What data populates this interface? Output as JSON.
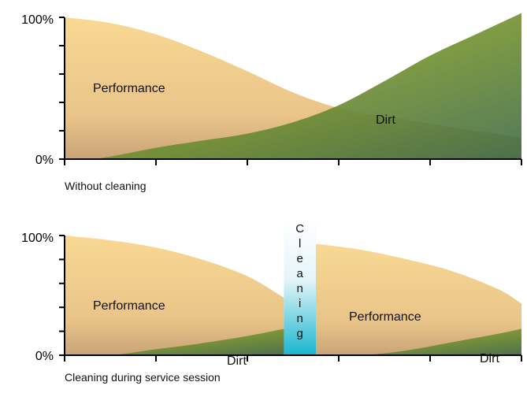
{
  "chart_data": [
    {
      "type": "area",
      "caption": "Without cleaning",
      "ylim": [
        0,
        100
      ],
      "y_tick_labels": [
        "100%",
        "0%"
      ],
      "x_ticks": [
        0,
        1,
        2,
        3,
        4,
        5
      ],
      "series": [
        {
          "name": "Performance",
          "color": "#f5d48e",
          "points": [
            [
              0,
              100
            ],
            [
              0.5,
              96
            ],
            [
              1,
              88
            ],
            [
              1.5,
              76
            ],
            [
              2,
              62
            ],
            [
              2.5,
              47
            ],
            [
              3,
              36
            ],
            [
              3.5,
              30
            ],
            [
              4,
              25
            ],
            [
              4.5,
              20
            ],
            [
              5,
              15
            ]
          ]
        },
        {
          "name": "Dirt",
          "color": "#7e9a2a",
          "points": [
            [
              0,
              0
            ],
            [
              0.3,
              0
            ],
            [
              0.6,
              3
            ],
            [
              1,
              8
            ],
            [
              1.5,
              13
            ],
            [
              2,
              18
            ],
            [
              2.5,
              26
            ],
            [
              3,
              38
            ],
            [
              3.5,
              55
            ],
            [
              4,
              73
            ],
            [
              4.5,
              88
            ],
            [
              5,
              103
            ]
          ]
        }
      ]
    },
    {
      "type": "area",
      "caption": "Cleaning  during service session",
      "ylim": [
        0,
        100
      ],
      "y_tick_labels": [
        "100%",
        "0%"
      ],
      "x_ticks": [
        0,
        1,
        2,
        3,
        4,
        5
      ],
      "cleaning_band": {
        "x_start": 2.4,
        "x_end": 2.75,
        "label_letters": [
          "C",
          "l",
          "e",
          "a",
          "n",
          "i",
          "n",
          "g"
        ]
      },
      "series": [
        {
          "name": "Performance",
          "color": "#f5d48e",
          "points": [
            [
              0,
              100
            ],
            [
              0.5,
              96
            ],
            [
              1,
              90
            ],
            [
              1.5,
              80
            ],
            [
              2,
              66
            ],
            [
              2.4,
              48
            ],
            [
              2.75,
              93
            ],
            [
              3.25,
              88
            ],
            [
              3.75,
              80
            ],
            [
              4.25,
              70
            ],
            [
              4.75,
              55
            ],
            [
              5,
              43
            ]
          ]
        },
        {
          "name": "Dirt",
          "color": "#7e9a2a",
          "points": [
            [
              0,
              0
            ],
            [
              0.5,
              0
            ],
            [
              1,
              5
            ],
            [
              1.5,
              10
            ],
            [
              2,
              16
            ],
            [
              2.4,
              22
            ],
            [
              2.75,
              0
            ],
            [
              3.25,
              0
            ],
            [
              3.75,
              4
            ],
            [
              4.25,
              11
            ],
            [
              4.75,
              18
            ],
            [
              5,
              22
            ]
          ]
        }
      ]
    }
  ]
}
